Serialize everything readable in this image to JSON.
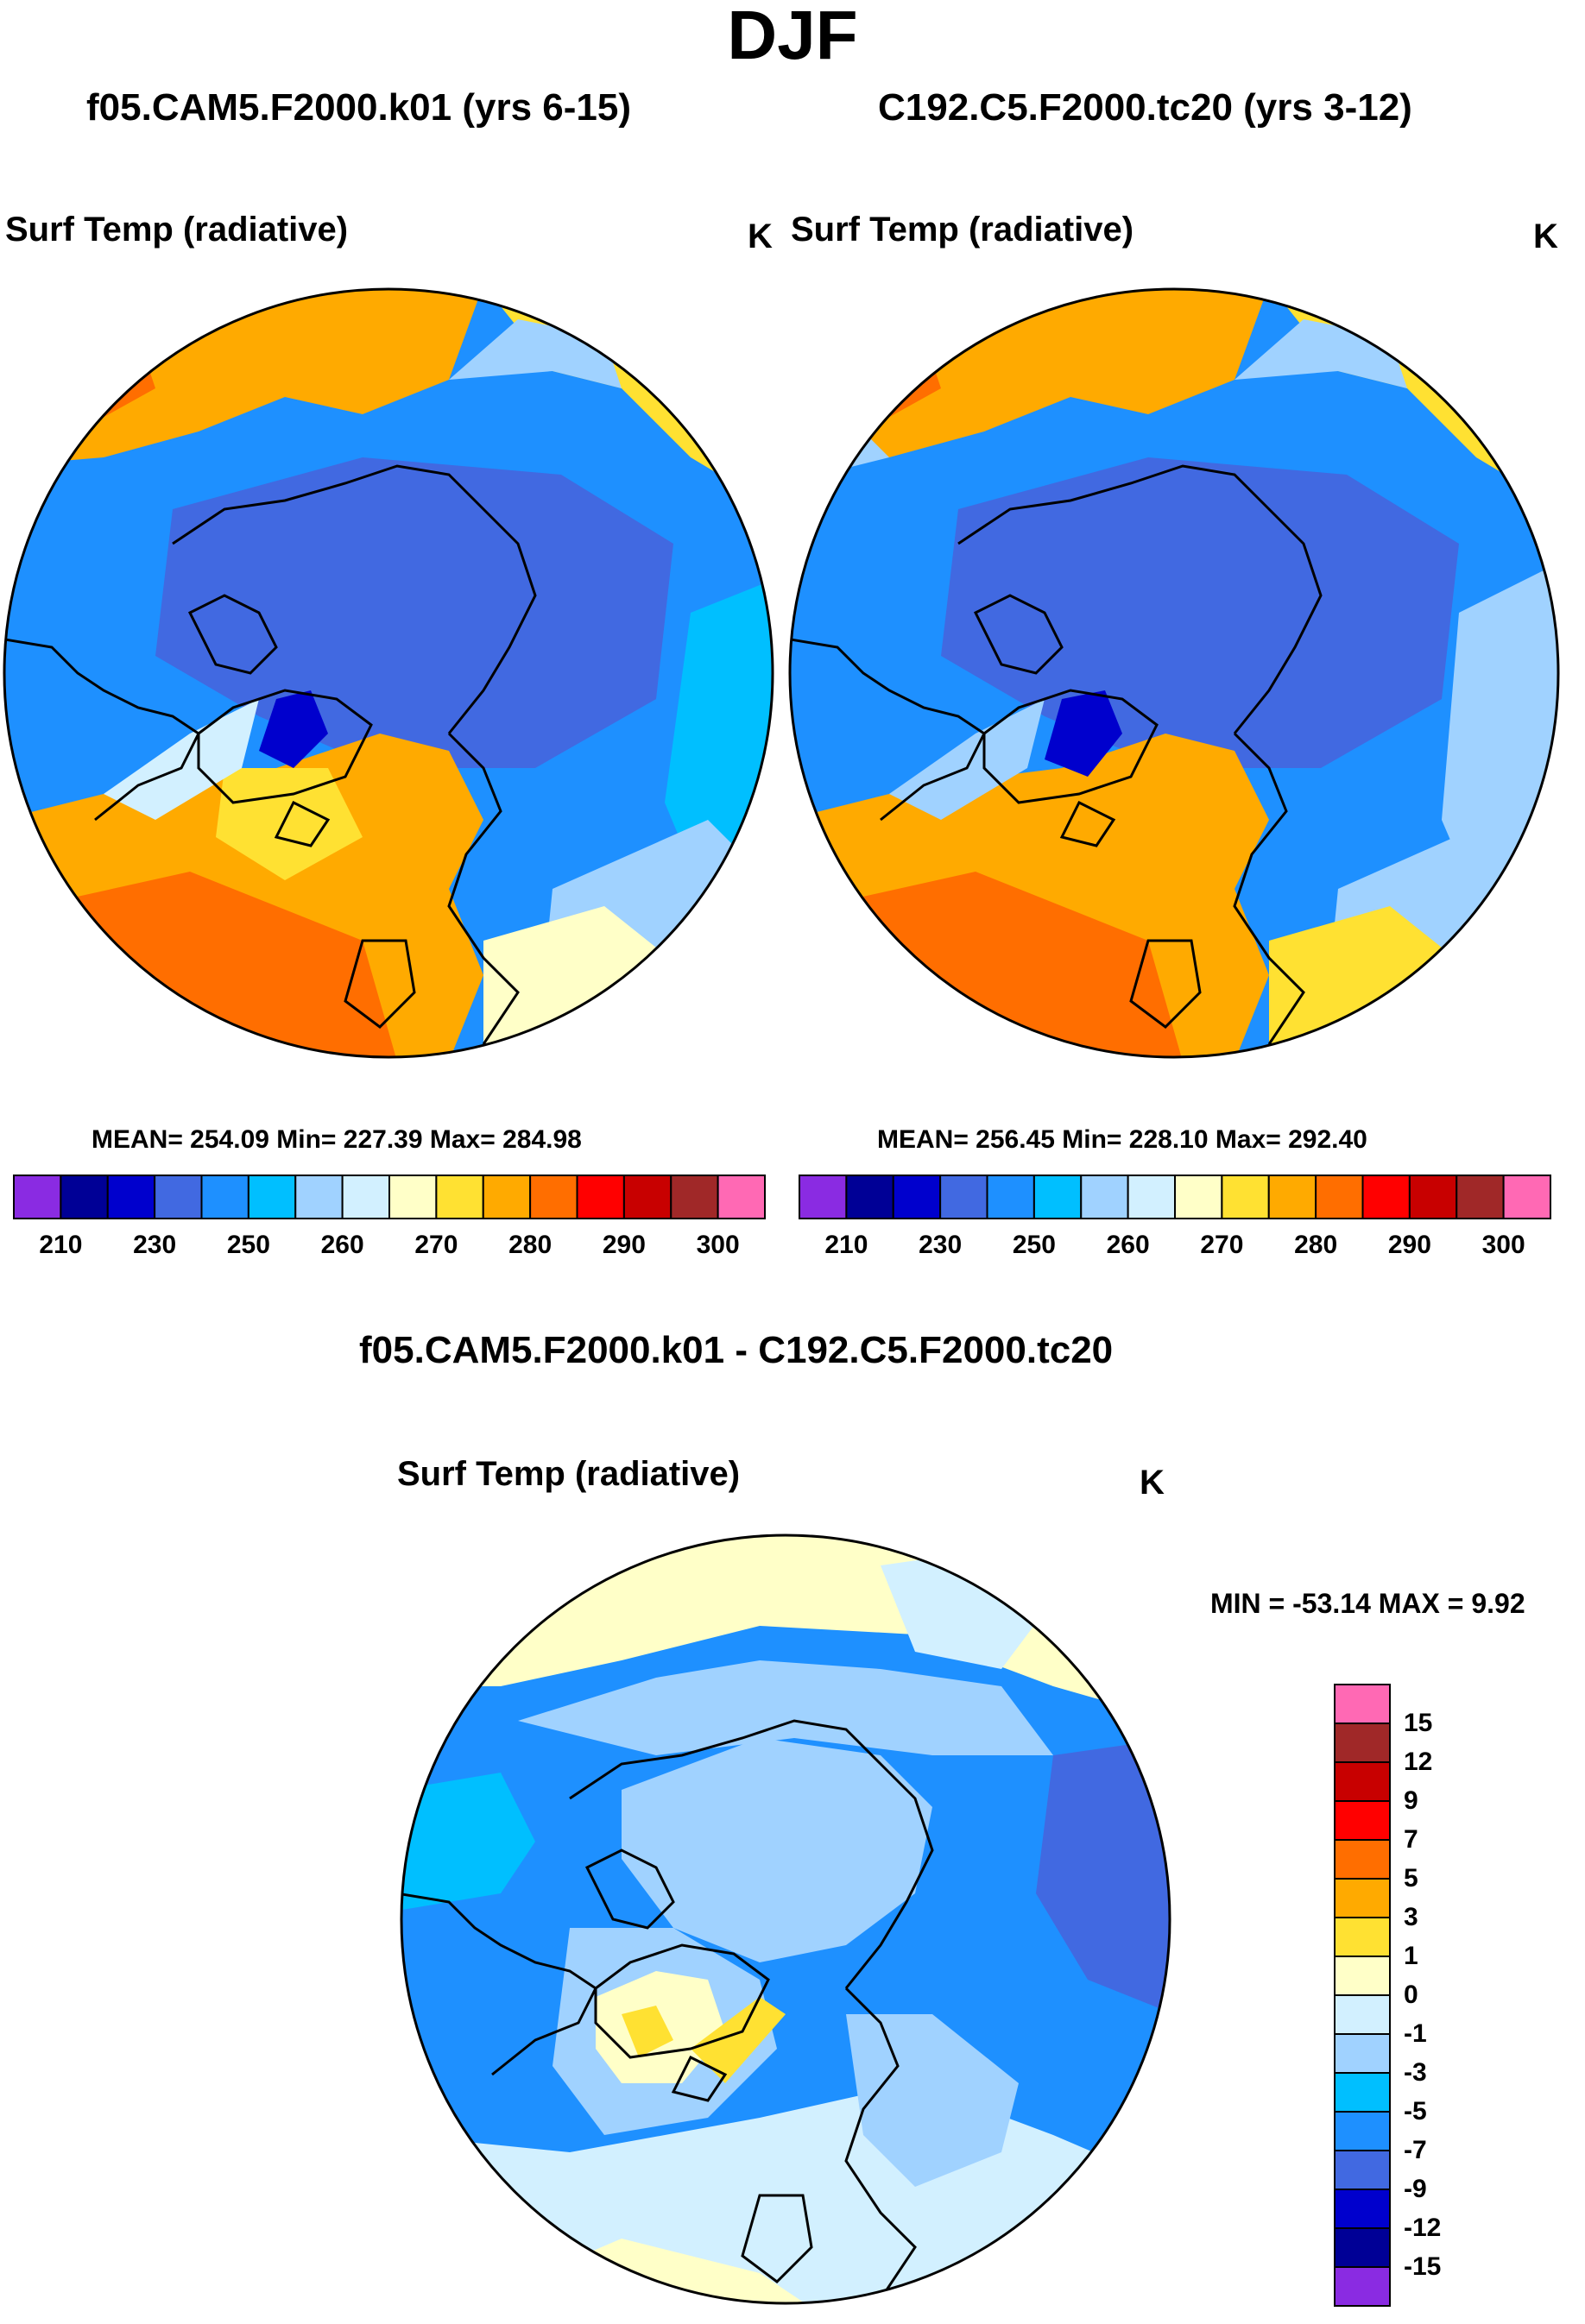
{
  "chart_data": [
    {
      "type": "heatmap",
      "title": "f05.CAM5.F2000.k01 (yrs 6-15)",
      "variable": "Surf Temp (radiative)",
      "units": "K",
      "mean": "254.09",
      "min": "227.39",
      "max": "284.98",
      "stats_text": "MEAN= 254.09  Min= 227.39  Max= 284.98",
      "colorbar_levels": [
        "210",
        "230",
        "250",
        "260",
        "270",
        "280",
        "290",
        "300"
      ]
    },
    {
      "type": "heatmap",
      "title": "C192.C5.F2000.tc20 (yrs 3-12)",
      "variable": "Surf Temp (radiative)",
      "units": "K",
      "mean": "256.45",
      "min": "228.10",
      "max": "292.40",
      "stats_text": "MEAN= 256.45  Min= 228.10  Max= 292.40",
      "colorbar_levels": [
        "210",
        "230",
        "250",
        "260",
        "270",
        "280",
        "290",
        "300"
      ]
    },
    {
      "type": "heatmap",
      "title": "f05.CAM5.F2000.k01 - C192.C5.F2000.tc20",
      "variable": "Surf Temp (radiative)",
      "units": "K",
      "min": "-53.14",
      "max": "9.92",
      "stats_text": "MIN = -53.14 MAX =   9.92",
      "colorbar_levels": [
        "15",
        "12",
        "9",
        "7",
        "5",
        "3",
        "1",
        "0",
        "-1",
        "-3",
        "-5",
        "-7",
        "-9",
        "-12",
        "-15"
      ]
    }
  ],
  "figure": {
    "title": "DJF"
  },
  "colors": {
    "abs_scale": [
      "#8a2be2",
      "#000096",
      "#0000cd",
      "#4169e1",
      "#1e90ff",
      "#00bfff",
      "#a0d2ff",
      "#d2f0ff",
      "#ffffc8",
      "#ffe132",
      "#ffaa00",
      "#ff6e00",
      "#ff0000",
      "#c80000",
      "#a02828",
      "#ff69b4"
    ],
    "diff_scale": [
      "#ff69b4",
      "#a02828",
      "#c80000",
      "#ff0000",
      "#ff6e00",
      "#ffaa00",
      "#ffe132",
      "#ffffc8",
      "#d2f0ff",
      "#a0d2ff",
      "#00bfff",
      "#1e90ff",
      "#4169e1",
      "#0000cd",
      "#000096",
      "#8a2be2"
    ]
  }
}
